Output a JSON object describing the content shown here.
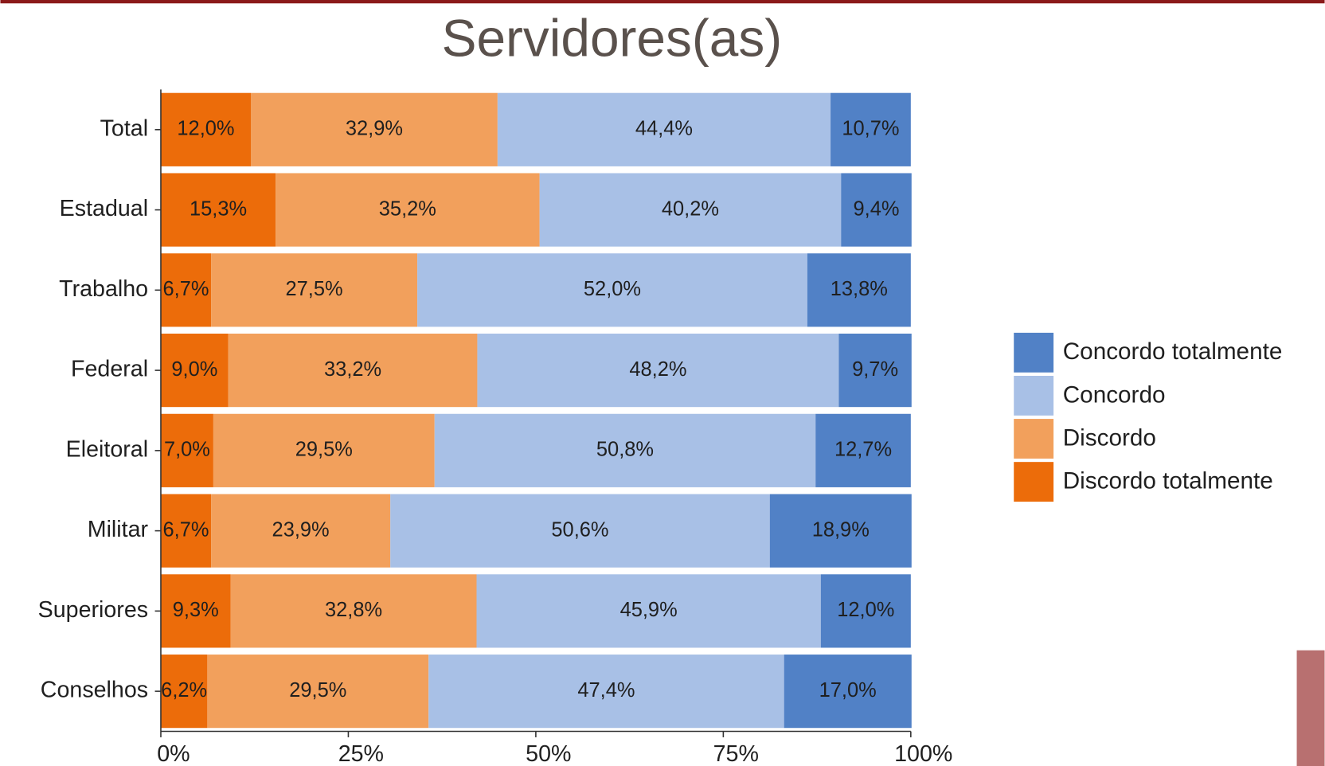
{
  "chart_data": {
    "type": "stacked-bar-horizontal",
    "title": "Servidores(as)",
    "categories": [
      "Total",
      "Estadual",
      "Trabalho",
      "Federal",
      "Eleitoral",
      "Militar",
      "Superiores",
      "Conselhos"
    ],
    "series": [
      {
        "name": "Discordo totalmente",
        "color": "#ec6c0a",
        "values": [
          12.0,
          15.3,
          6.7,
          9.0,
          7.0,
          6.7,
          9.3,
          6.2
        ],
        "value_labels": [
          "12,0%",
          "15,3%",
          "6,7%",
          "9,0%",
          "7,0%",
          "6,7%",
          "9,3%",
          "6,2%"
        ]
      },
      {
        "name": "Discordo",
        "color": "#f2a05c",
        "values": [
          32.9,
          35.2,
          27.5,
          33.2,
          29.5,
          23.9,
          32.8,
          29.5
        ],
        "value_labels": [
          "32,9%",
          "35,2%",
          "27,5%",
          "33,2%",
          "29,5%",
          "23,9%",
          "32,8%",
          "29,5%"
        ]
      },
      {
        "name": "Concordo",
        "color": "#a8c0e6",
        "values": [
          44.4,
          40.2,
          52.0,
          48.2,
          50.8,
          50.6,
          45.9,
          47.4
        ],
        "value_labels": [
          "44,4%",
          "40,2%",
          "52,0%",
          "48,2%",
          "50,8%",
          "50,6%",
          "45,9%",
          "47,4%"
        ]
      },
      {
        "name": "Concordo totalmente",
        "color": "#5181c6",
        "values": [
          10.7,
          9.4,
          13.8,
          9.7,
          12.7,
          18.9,
          12.0,
          17.0
        ],
        "value_labels": [
          "10,7%",
          "9,4%",
          "13,8%",
          "9,7%",
          "12,7%",
          "18,9%",
          "12,0%",
          "17,0%"
        ]
      }
    ],
    "xlim": [
      0,
      100
    ],
    "xticks": [
      {
        "value": 0,
        "label": "0%"
      },
      {
        "value": 25,
        "label": "25%"
      },
      {
        "value": 50,
        "label": "50%"
      },
      {
        "value": 75,
        "label": "75%"
      },
      {
        "value": 100,
        "label": "100%"
      }
    ],
    "legend": "right"
  }
}
